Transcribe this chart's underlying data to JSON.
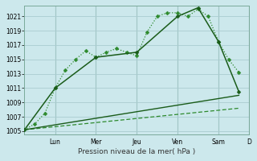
{
  "background_color": "#cce8ec",
  "grid_color": "#aaccd0",
  "line_color_dark": "#1a5c1a",
  "line_color_medium": "#2d8a2d",
  "figsize": [
    3.2,
    2.0
  ],
  "dpi": 100,
  "ylim": [
    1004.5,
    1022.5
  ],
  "yticks": [
    1005,
    1007,
    1009,
    1011,
    1013,
    1015,
    1017,
    1019,
    1021
  ],
  "xlim": [
    0,
    22
  ],
  "day_x": [
    3,
    7,
    11,
    15,
    19,
    22
  ],
  "day_labels": [
    "Lun",
    "Mer",
    "Jeu",
    "Ven",
    "Sam",
    "D"
  ],
  "xlabel": "Pression niveau de la mer( hPa )",
  "series_dotted": {
    "x": [
      0,
      1,
      2,
      3,
      4,
      5,
      6,
      7,
      8,
      9,
      10,
      11,
      12,
      13,
      14,
      15,
      16,
      17,
      18,
      19,
      20,
      21
    ],
    "y": [
      1005.2,
      1006.0,
      1007.5,
      1011.0,
      1013.5,
      1015.0,
      1016.2,
      1015.3,
      1016.0,
      1016.5,
      1016.0,
      1015.5,
      1018.8,
      1021.0,
      1021.5,
      1021.5,
      1021.0,
      1022.0,
      1021.0,
      1017.5,
      1015.0,
      1013.2
    ],
    "color": "#2d8a2d",
    "linewidth": 0.9,
    "markersize": 2.5
  },
  "series_solid_markers": {
    "x": [
      0,
      3,
      7,
      11,
      15,
      17,
      19,
      21
    ],
    "y": [
      1005.2,
      1011.0,
      1015.3,
      1016.0,
      1021.0,
      1022.2,
      1017.5,
      1010.5
    ],
    "color": "#1a5c1a",
    "linewidth": 1.1,
    "markersize": 2.5
  },
  "series_solid_trend": {
    "x": [
      0,
      21
    ],
    "y": [
      1005.2,
      1010.0
    ],
    "color": "#1a5c1a",
    "linewidth": 1.0
  },
  "series_dashed_trend": {
    "x": [
      0,
      21
    ],
    "y": [
      1005.2,
      1008.2
    ],
    "color": "#2d8a2d",
    "linewidth": 0.9
  }
}
